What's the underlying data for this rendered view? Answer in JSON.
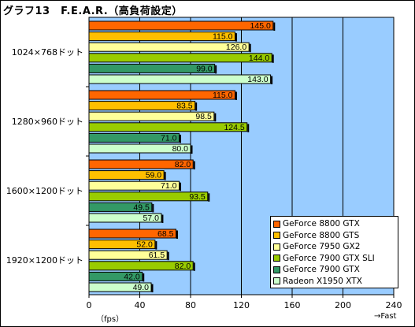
{
  "title": "グラフ13　F.E.A.R.（高負荷設定）",
  "chart_data": {
    "type": "bar",
    "orientation": "horizontal",
    "categories": [
      "1024×768ドット",
      "1280×960ドット",
      "1600×1200ドット",
      "1920×1200ドット"
    ],
    "series": [
      {
        "name": "GeForce 8800 GTX",
        "color": "#ff6600",
        "values": [
          145.0,
          115.0,
          82.0,
          68.5
        ]
      },
      {
        "name": "GeForce 8800 GTS",
        "color": "#ffbf00",
        "values": [
          115.0,
          83.5,
          59.0,
          52.0
        ]
      },
      {
        "name": "GeForce 7950 GX2",
        "color": "#ffff99",
        "values": [
          126.0,
          98.5,
          71.0,
          61.5
        ]
      },
      {
        "name": "GeForce 7900 GTX SLI",
        "color": "#99cc00",
        "values": [
          144.0,
          124.5,
          93.5,
          82.0
        ]
      },
      {
        "name": "GeForce 7900 GTX",
        "color": "#339966",
        "values": [
          99.0,
          71.0,
          49.5,
          42.0
        ]
      },
      {
        "name": "Radeon X1950 XTX",
        "color": "#ccffcc",
        "values": [
          143.0,
          80.0,
          57.0,
          49.0
        ]
      }
    ],
    "xlim": [
      0,
      240
    ],
    "xticks": [
      "0",
      "40",
      "80",
      "120",
      "160",
      "200",
      "240"
    ],
    "xlabel": "（fps）",
    "x_note": "→Fast",
    "plot_background": "#99ccff",
    "grid": true,
    "legend_position": "bottom-right"
  }
}
